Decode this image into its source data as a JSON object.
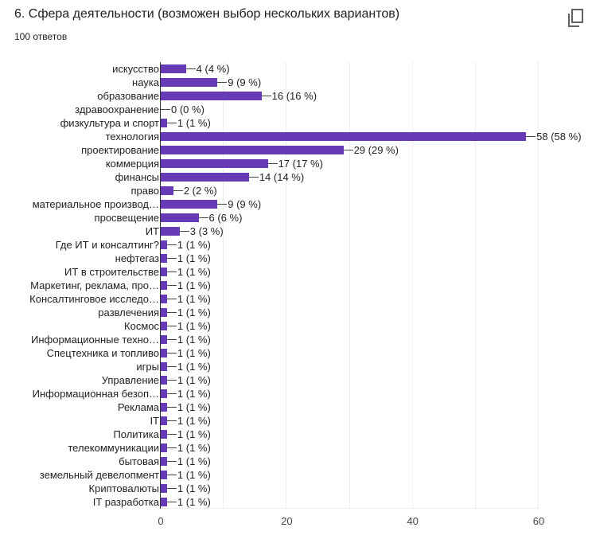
{
  "header": {
    "title": "6. Сфера деятельности (возможен выбор нескольких вариантов)",
    "responses": "100 ответов",
    "copy_icon": "copy-icon"
  },
  "colors": {
    "bar": "#673ab7",
    "grid": "#eeeeee",
    "axis": "#333333"
  },
  "chart_data": {
    "type": "bar",
    "orientation": "horizontal",
    "title": "6. Сфера деятельности (возможен выбор нескольких вариантов)",
    "subtitle": "100 ответов",
    "xlabel": "",
    "ylabel": "",
    "xlim": [
      0,
      60
    ],
    "x_ticks": [
      "0",
      "20",
      "40",
      "60"
    ],
    "grid": true,
    "categories": [
      "искусство",
      "наука",
      "образование",
      "здравоохранение",
      "физкультура и спорт",
      "технология",
      "проектирование",
      "коммерция",
      "финансы",
      "право",
      "материальное производ…",
      "просвещение",
      "ИТ",
      "Где ИТ и консалтинг?",
      "нефтегаз",
      "ИТ в строительстве",
      "Маркетинг, реклама, про…",
      "Консалтинговое исследо…",
      "развлечения",
      "Космос",
      "Информационные техно…",
      "Спецтехника и топливо",
      "игры",
      "Управление",
      "Информационная безоп…",
      "Реклама",
      "IT",
      "Политика",
      "телекоммуникации",
      "бытовая",
      "земельный девелопмент",
      "Криптовалюты",
      "IT разработка"
    ],
    "values": [
      4,
      9,
      16,
      0,
      1,
      58,
      29,
      17,
      14,
      2,
      9,
      6,
      3,
      1,
      1,
      1,
      1,
      1,
      1,
      1,
      1,
      1,
      1,
      1,
      1,
      1,
      1,
      1,
      1,
      1,
      1,
      1,
      1
    ],
    "labels": [
      "4 (4 %)",
      "9 (9 %)",
      "16 (16 %)",
      "0 (0 %)",
      "1 (1 %)",
      "58 (58 %)",
      "29 (29 %)",
      "17 (17 %)",
      "14 (14 %)",
      "2 (2 %)",
      "9 (9 %)",
      "6 (6 %)",
      "3 (3 %)",
      "1 (1 %)",
      "1 (1 %)",
      "1 (1 %)",
      "1 (1 %)",
      "1 (1 %)",
      "1 (1 %)",
      "1 (1 %)",
      "1 (1 %)",
      "1 (1 %)",
      "1 (1 %)",
      "1 (1 %)",
      "1 (1 %)",
      "1 (1 %)",
      "1 (1 %)",
      "1 (1 %)",
      "1 (1 %)",
      "1 (1 %)",
      "1 (1 %)",
      "1 (1 %)",
      "1 (1 %)"
    ]
  }
}
